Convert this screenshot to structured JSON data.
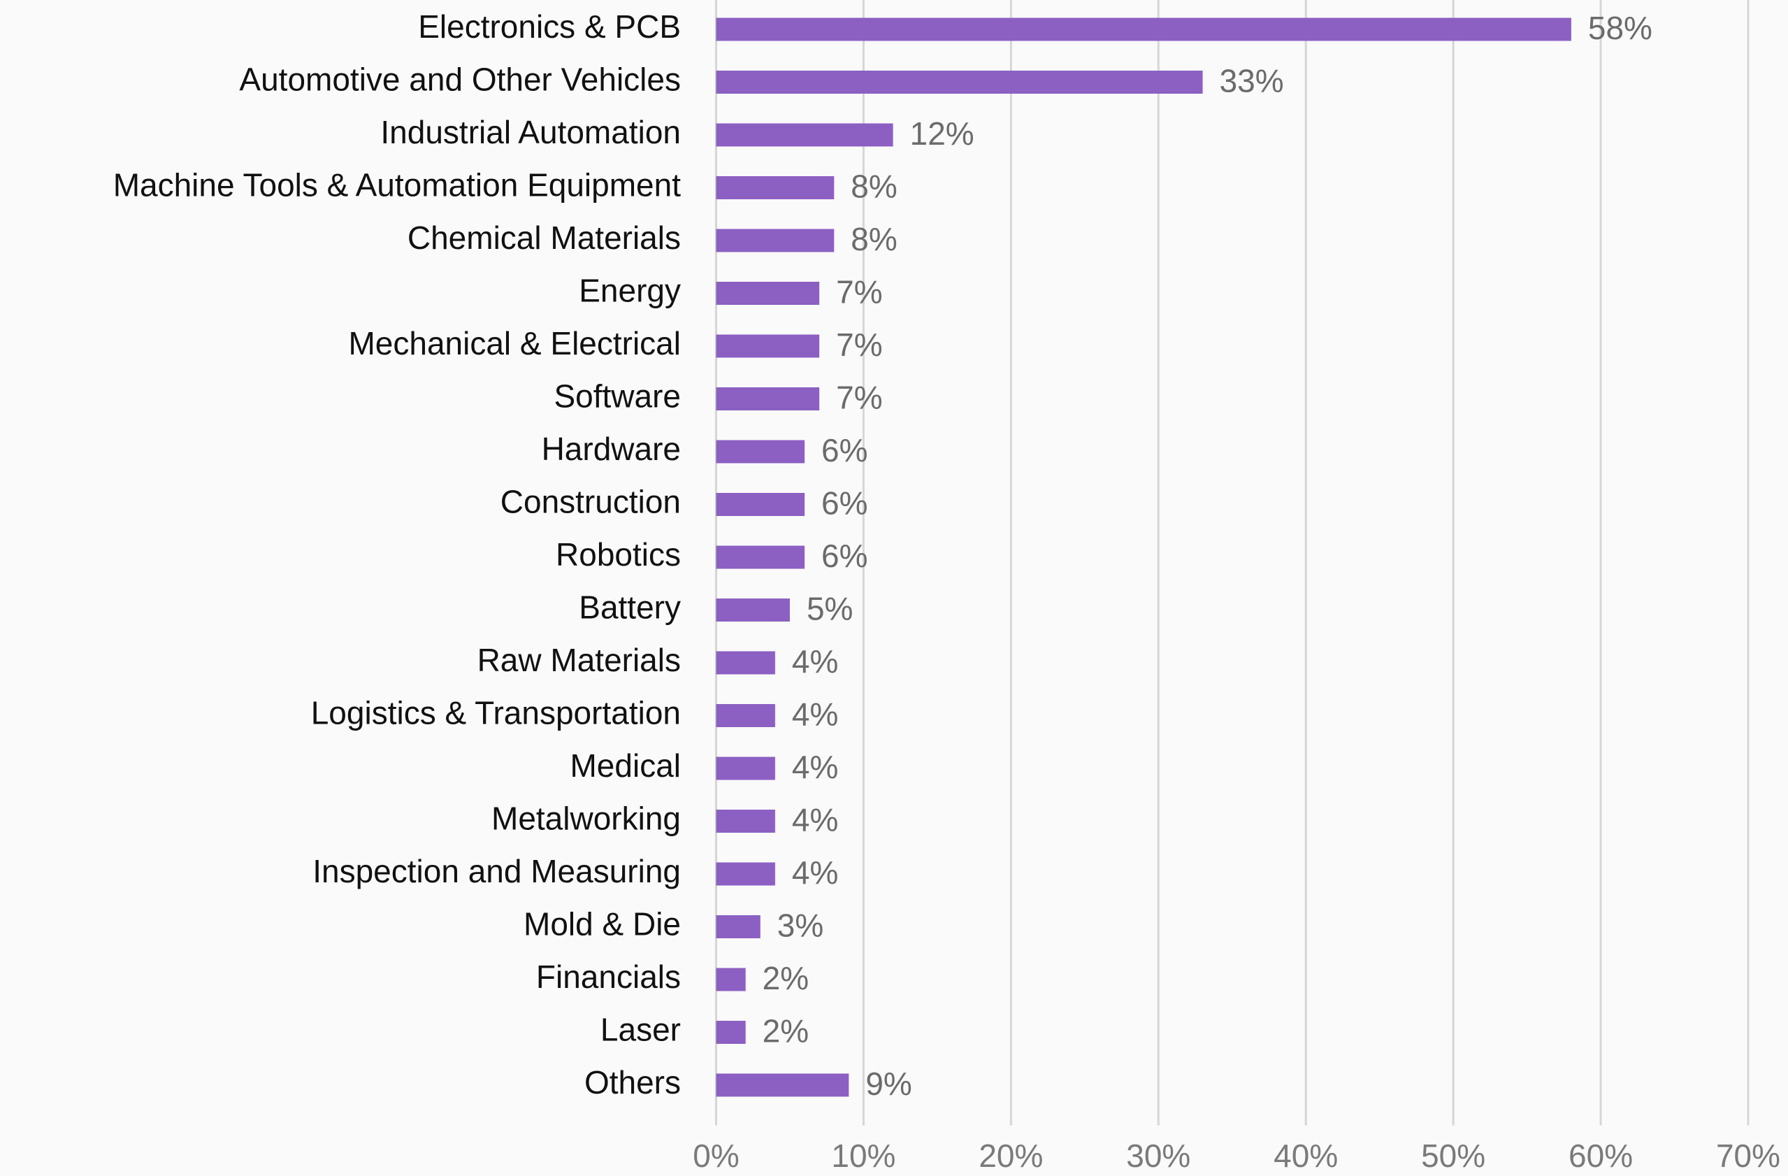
{
  "chart_data": {
    "type": "bar",
    "orientation": "horizontal",
    "categories": [
      "Electronics & PCB",
      "Automotive and Other Vehicles",
      "Industrial Automation",
      "Machine Tools & Automation Equipment",
      "Chemical Materials",
      "Energy",
      "Mechanical & Electrical",
      "Software",
      "Hardware",
      "Construction",
      "Robotics",
      "Battery",
      "Raw Materials",
      "Logistics & Transportation",
      "Medical",
      "Metalworking",
      "Inspection and Measuring",
      "Mold & Die",
      "Financials",
      "Laser",
      "Others"
    ],
    "values": [
      58,
      33,
      12,
      8,
      8,
      7,
      7,
      7,
      6,
      6,
      6,
      5,
      4,
      4,
      4,
      4,
      4,
      3,
      2,
      2,
      9
    ],
    "value_labels": [
      "58%",
      "33%",
      "12%",
      "8%",
      "8%",
      "7%",
      "7%",
      "7%",
      "6%",
      "6%",
      "6%",
      "5%",
      "4%",
      "4%",
      "4%",
      "4%",
      "4%",
      "3%",
      "2%",
      "2%",
      "9%"
    ],
    "color": "#8c5fc3",
    "xlim": [
      0,
      70
    ],
    "xticks": [
      {
        "value": 0,
        "label": "0%"
      },
      {
        "value": 10,
        "label": "10%"
      },
      {
        "value": 20,
        "label": "20%"
      },
      {
        "value": 30,
        "label": "30%"
      },
      {
        "value": 40,
        "label": "40%"
      },
      {
        "value": 50,
        "label": "50%"
      },
      {
        "value": 60,
        "label": "60%"
      },
      {
        "value": 70,
        "label": "70%"
      }
    ],
    "grid": true
  }
}
